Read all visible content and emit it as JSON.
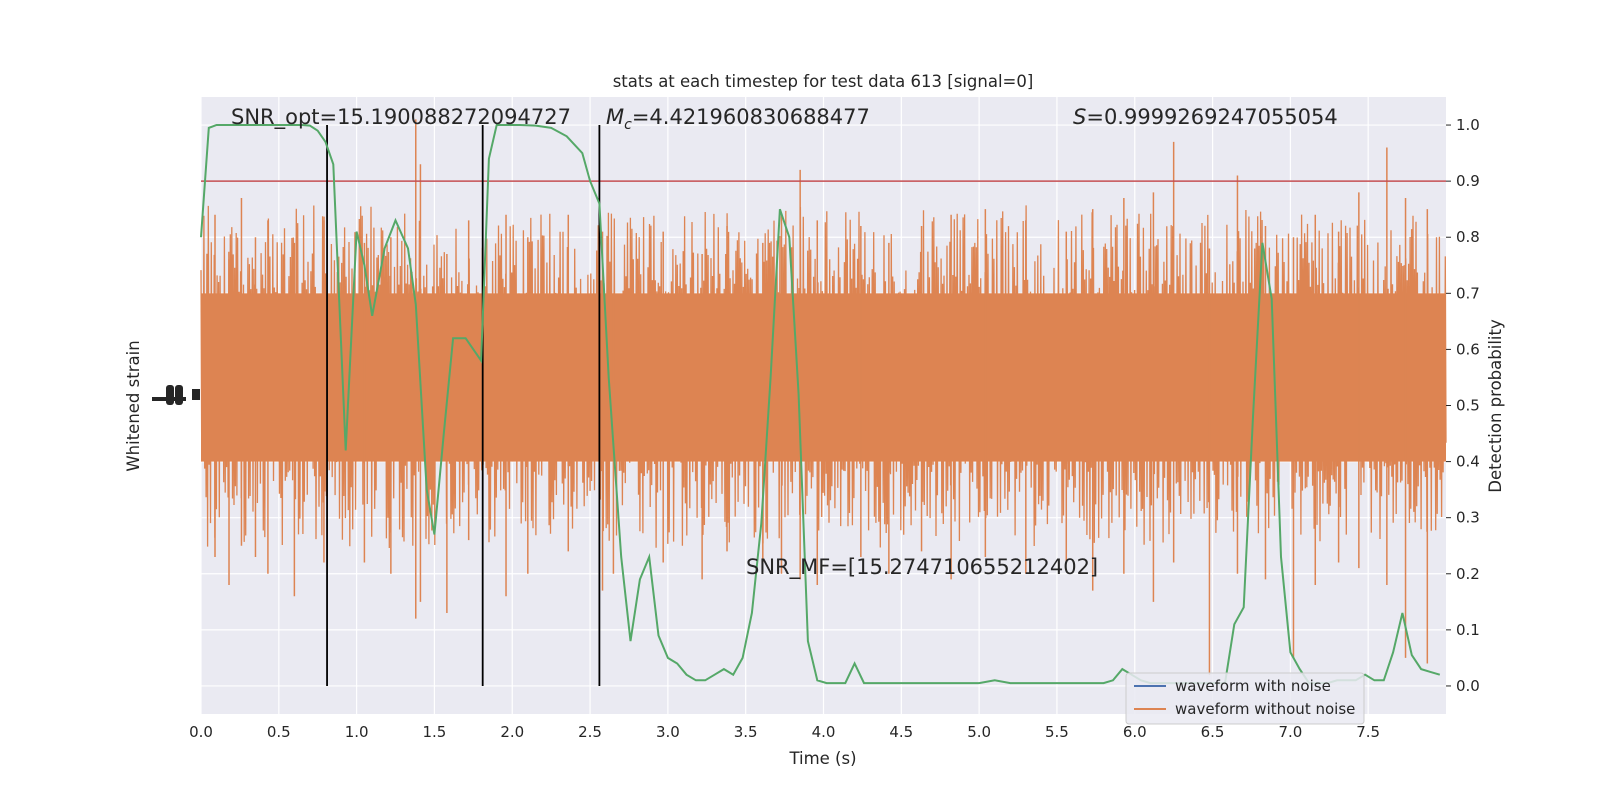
{
  "chart_data": {
    "type": "line",
    "title": "stats at each timestep for test data 613 [signal=0]",
    "xlabel": "Time (s)",
    "ylabel_left": "Whitened strain",
    "ylabel_right": "Detection probability",
    "xlim": [
      0,
      8
    ],
    "ylim_right": [
      -0.05,
      1.05
    ],
    "x_ticks": [
      "0.0",
      "0.5",
      "1.0",
      "1.5",
      "2.0",
      "2.5",
      "3.0",
      "3.5",
      "4.0",
      "4.5",
      "5.0",
      "5.5",
      "6.0",
      "6.5",
      "7.0",
      "7.5"
    ],
    "y_right_ticks": [
      "0.0",
      "0.1",
      "0.2",
      "0.3",
      "0.4",
      "0.5",
      "0.6",
      "0.7",
      "0.8",
      "0.9",
      "1.0"
    ],
    "grid": true,
    "legend_position": "lower-right",
    "annotations": {
      "snr_opt": "SNR_opt=15.190088272094727",
      "mc_symbol": "M",
      "mc_sub": "c",
      "mc_value": "=4.421960830688477",
      "s_symbol": "S",
      "s_value": "=0.9999269247055054",
      "snr_mf": "SNR_MF=[15.274710655212402]"
    },
    "series": [
      {
        "name": "waveform with noise",
        "color": "#4c72b0"
      },
      {
        "name": "waveform without noise",
        "color": "#dd8452"
      }
    ],
    "threshold": {
      "y": 0.9,
      "color": "#c44e52"
    },
    "vertical_lines_x": [
      0.81,
      1.81,
      2.56
    ],
    "strain_band": {
      "core_low": 0.4,
      "core_high": 0.7,
      "color": "#dd8452"
    },
    "probability": {
      "color": "#55a868",
      "x": [
        0.0,
        0.05,
        0.1,
        0.2,
        0.3,
        0.4,
        0.5,
        0.6,
        0.65,
        0.7,
        0.75,
        0.8,
        0.85,
        0.93,
        1.0,
        1.05,
        1.1,
        1.18,
        1.25,
        1.33,
        1.38,
        1.45,
        1.5,
        1.56,
        1.62,
        1.7,
        1.8,
        1.85,
        1.9,
        1.95,
        2.05,
        2.15,
        2.25,
        2.35,
        2.45,
        2.5,
        2.56,
        2.62,
        2.7,
        2.76,
        2.82,
        2.88,
        2.94,
        3.0,
        3.06,
        3.12,
        3.18,
        3.24,
        3.3,
        3.36,
        3.42,
        3.48,
        3.54,
        3.6,
        3.66,
        3.72,
        3.78,
        3.84,
        3.9,
        3.96,
        4.02,
        4.08,
        4.14,
        4.2,
        4.26,
        4.32,
        4.38,
        4.44,
        4.5,
        4.56,
        4.62,
        4.7,
        4.8,
        4.9,
        5.0,
        5.1,
        5.2,
        5.3,
        5.4,
        5.5,
        5.6,
        5.7,
        5.8,
        5.86,
        5.92,
        5.98,
        6.04,
        6.1,
        6.16,
        6.22,
        6.28,
        6.34,
        6.4,
        6.46,
        6.52,
        6.58,
        6.64,
        6.7,
        6.76,
        6.82,
        6.88,
        6.94,
        7.0,
        7.06,
        7.12,
        7.18,
        7.24,
        7.3,
        7.36,
        7.42,
        7.48,
        7.54,
        7.6,
        7.66,
        7.72,
        7.78,
        7.84,
        7.9,
        7.96
      ],
      "y": [
        0.8,
        0.995,
        1.0,
        1.0,
        1.0,
        1.0,
        1.0,
        1.0,
        1.0,
        0.999,
        0.99,
        0.97,
        0.93,
        0.42,
        0.81,
        0.75,
        0.66,
        0.78,
        0.83,
        0.78,
        0.68,
        0.35,
        0.27,
        0.45,
        0.62,
        0.62,
        0.58,
        0.94,
        1.0,
        1.0,
        1.0,
        0.999,
        0.995,
        0.98,
        0.95,
        0.9,
        0.86,
        0.55,
        0.23,
        0.08,
        0.19,
        0.23,
        0.09,
        0.05,
        0.04,
        0.02,
        0.01,
        0.01,
        0.02,
        0.03,
        0.02,
        0.05,
        0.13,
        0.29,
        0.55,
        0.85,
        0.8,
        0.52,
        0.08,
        0.01,
        0.005,
        0.005,
        0.005,
        0.04,
        0.005,
        0.005,
        0.005,
        0.005,
        0.005,
        0.005,
        0.005,
        0.005,
        0.005,
        0.005,
        0.005,
        0.01,
        0.005,
        0.005,
        0.005,
        0.005,
        0.005,
        0.005,
        0.005,
        0.01,
        0.03,
        0.02,
        0.01,
        0.005,
        0.005,
        0.005,
        0.005,
        0.005,
        0.005,
        0.005,
        0.005,
        0.005,
        0.11,
        0.14,
        0.48,
        0.79,
        0.69,
        0.23,
        0.06,
        0.03,
        0.005,
        0.005,
        0.005,
        0.01,
        0.01,
        0.01,
        0.02,
        0.01,
        0.01,
        0.06,
        0.13,
        0.055,
        0.03,
        0.025,
        0.02
      ]
    },
    "strain_spikes": {
      "x": [
        0.09,
        0.18,
        0.26,
        0.35,
        0.43,
        0.6,
        0.79,
        1.05,
        1.22,
        1.38,
        1.41,
        1.58,
        1.72,
        1.96,
        2.1,
        2.36,
        2.58,
        2.65,
        2.97,
        3.22,
        3.38,
        3.61,
        3.73,
        3.85,
        3.96,
        4.24,
        4.42,
        4.63,
        4.82,
        5.04,
        5.3,
        5.56,
        5.73,
        5.93,
        6.12,
        6.25,
        6.48,
        6.66,
        6.84,
        7.02,
        7.16,
        7.31,
        7.44,
        7.62,
        7.74,
        7.88
      ],
      "y_high": [
        0.84,
        0.76,
        0.87,
        0.8,
        0.83,
        0.79,
        0.83,
        0.79,
        0.8,
        1.01,
        0.93,
        0.77,
        0.83,
        0.84,
        0.8,
        0.84,
        0.81,
        0.7,
        0.81,
        0.77,
        0.82,
        0.79,
        0.84,
        0.92,
        0.83,
        0.82,
        0.79,
        0.82,
        0.84,
        0.85,
        0.83,
        0.81,
        0.85,
        0.87,
        0.88,
        0.97,
        0.78,
        0.91,
        0.82,
        0.8,
        0.84,
        0.81,
        0.88,
        0.96,
        0.87,
        0.85
      ],
      "y_low": [
        0.23,
        0.18,
        0.25,
        0.23,
        0.2,
        0.16,
        0.22,
        0.22,
        0.2,
        0.12,
        0.15,
        0.13,
        0.26,
        0.16,
        0.2,
        0.24,
        0.17,
        0.2,
        0.22,
        0.19,
        0.24,
        0.22,
        0.2,
        0.19,
        0.18,
        0.23,
        0.2,
        0.24,
        0.19,
        0.23,
        0.2,
        0.22,
        0.17,
        0.2,
        0.15,
        0.22,
        0.02,
        0.2,
        0.19,
        0.05,
        0.18,
        0.22,
        0.21,
        0.18,
        0.05,
        0.04
      ]
    }
  }
}
